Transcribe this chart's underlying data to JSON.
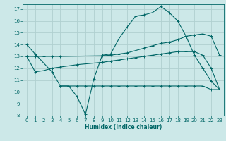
{
  "xlabel": "Humidex (Indice chaleur)",
  "background_color": "#cce8e8",
  "grid_color": "#b0d0d0",
  "line_color": "#006666",
  "xlim": [
    -0.5,
    23.5
  ],
  "ylim": [
    8,
    17.4
  ],
  "xticks": [
    0,
    1,
    2,
    3,
    4,
    5,
    6,
    7,
    8,
    9,
    10,
    11,
    12,
    13,
    14,
    15,
    16,
    17,
    18,
    19,
    20,
    21,
    22,
    23
  ],
  "yticks": [
    8,
    9,
    10,
    11,
    12,
    13,
    14,
    15,
    16,
    17
  ],
  "s1_x": [
    0,
    1,
    3,
    4,
    5,
    6,
    7,
    8,
    9,
    10,
    11,
    12,
    13,
    14,
    15,
    16,
    17,
    18,
    19,
    20,
    21,
    22,
    23
  ],
  "s1_y": [
    14.0,
    13.2,
    11.7,
    10.5,
    10.5,
    9.6,
    8.1,
    11.1,
    13.1,
    13.2,
    14.5,
    15.5,
    16.4,
    16.5,
    16.7,
    17.2,
    16.7,
    16.0,
    14.7,
    13.1,
    12.0,
    10.9,
    10.2
  ],
  "s2_x": [
    0,
    1,
    2,
    3,
    4,
    9,
    10,
    11,
    12,
    13,
    14,
    15,
    16,
    17,
    18,
    19,
    20,
    21,
    22,
    23
  ],
  "s2_y": [
    13.0,
    13.0,
    13.0,
    13.0,
    13.0,
    13.05,
    13.1,
    13.2,
    13.3,
    13.5,
    13.7,
    13.9,
    14.1,
    14.2,
    14.4,
    14.7,
    14.8,
    14.9,
    14.7,
    13.1
  ],
  "s3_x": [
    0,
    1,
    2,
    3,
    4,
    5,
    6,
    9,
    10,
    11,
    12,
    13,
    14,
    15,
    16,
    17,
    18,
    19,
    20,
    21,
    22,
    23
  ],
  "s3_y": [
    13.0,
    11.7,
    11.8,
    12.0,
    12.1,
    12.2,
    12.3,
    12.5,
    12.6,
    12.7,
    12.8,
    12.9,
    13.0,
    13.1,
    13.2,
    13.3,
    13.4,
    13.4,
    13.4,
    13.1,
    12.0,
    10.2
  ],
  "s4_x": [
    4,
    5,
    6,
    7,
    8,
    9,
    10,
    11,
    12,
    13,
    14,
    15,
    16,
    17,
    18,
    19,
    20,
    21,
    22,
    23
  ],
  "s4_y": [
    10.5,
    10.5,
    10.5,
    10.5,
    10.5,
    10.5,
    10.5,
    10.5,
    10.5,
    10.5,
    10.5,
    10.5,
    10.5,
    10.5,
    10.5,
    10.5,
    10.5,
    10.5,
    10.2,
    10.2
  ]
}
